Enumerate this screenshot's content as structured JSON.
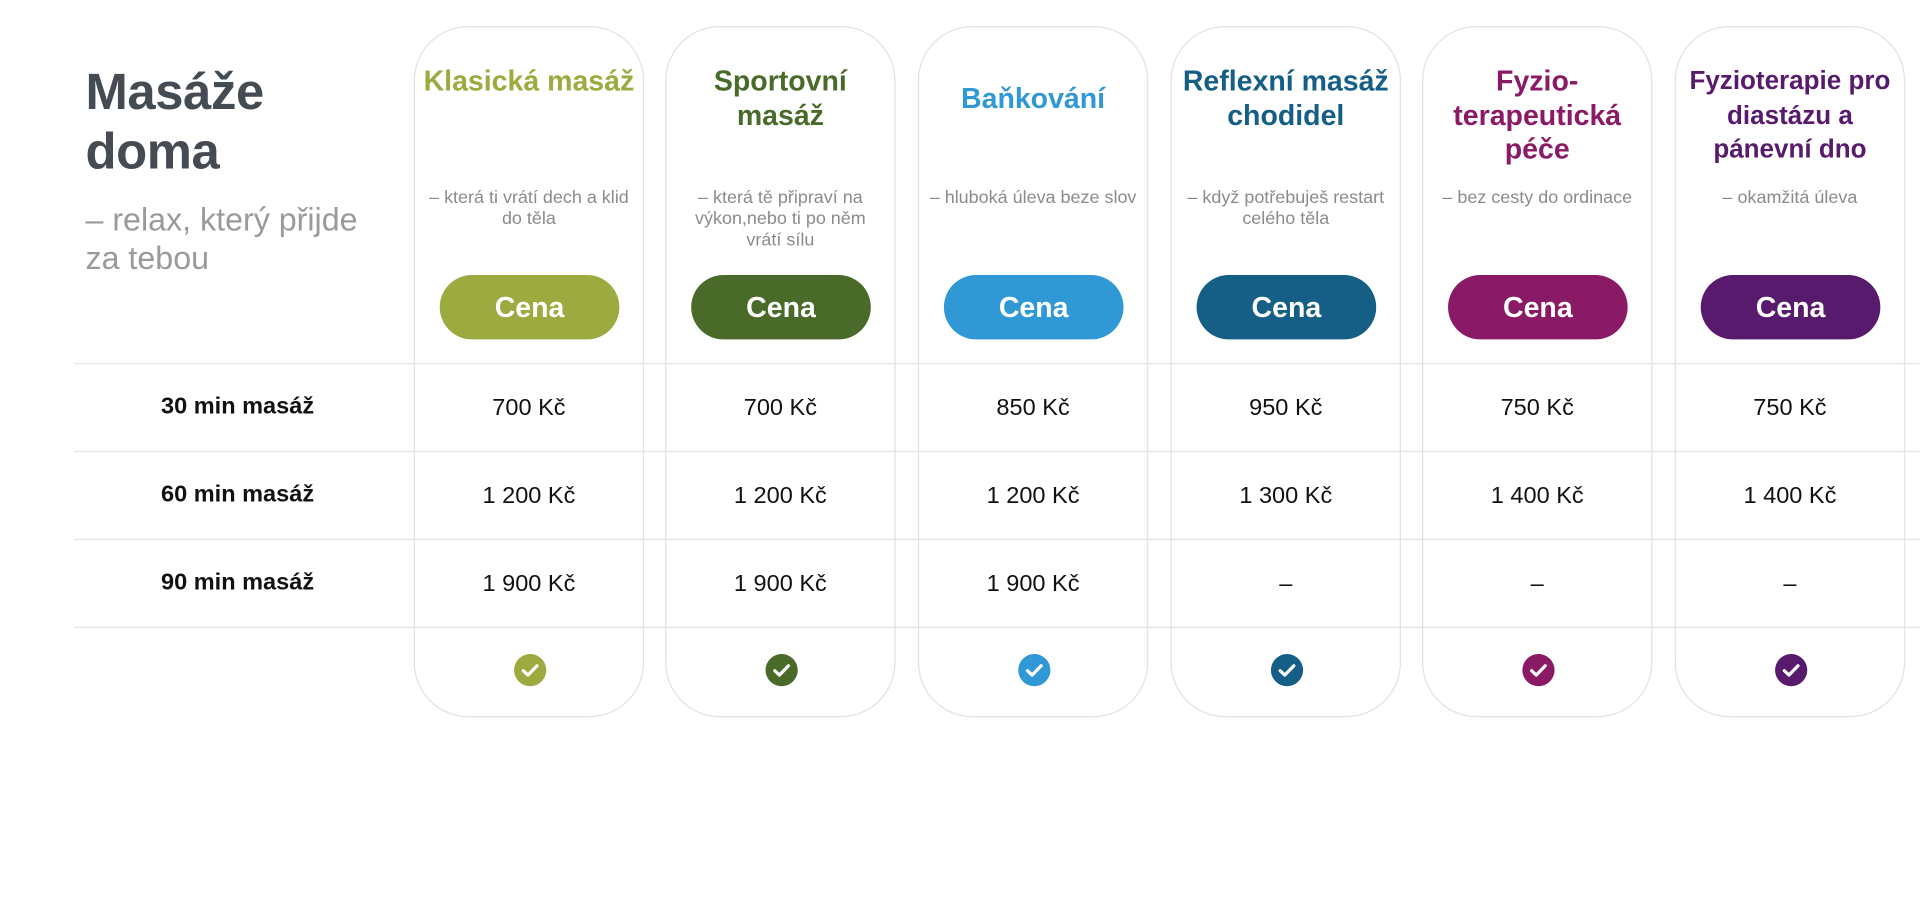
{
  "header": {
    "title": "Masáže doma",
    "subtitle": " – relax, který přijde za tebou"
  },
  "rows": {
    "r30": "30 min masáž",
    "r60": "60 min masáž",
    "r90": "90 min masáž"
  },
  "columns": [
    {
      "title": "Klasická masáž",
      "desc": "– která ti vrátí dech a klid do těla",
      "button_label": "Cena",
      "color": "#9caa3f",
      "prices": [
        "700 Kč",
        "1 200 Kč",
        "1 900 Kč"
      ],
      "check_icon": "check-circle-icon"
    },
    {
      "title": "Sportovní masáž",
      "desc": "– která tě připraví na výkon,nebo ti po něm vrátí sílu",
      "button_label": "Cena",
      "color": "#4a6a2a",
      "prices": [
        "700 Kč",
        "1 200 Kč",
        "1 900 Kč"
      ],
      "check_icon": "check-circle-icon"
    },
    {
      "title": "Baňkování",
      "desc": "– hluboká úleva beze slov",
      "button_label": "Cena",
      "color": "#3198d6",
      "prices": [
        "850 Kč",
        "1 200 Kč",
        "1 900 Kč"
      ],
      "check_icon": "check-circle-icon"
    },
    {
      "title": "Reflexní masáž chodidel",
      "desc": "– když potřebuješ restart celého těla",
      "button_label": "Cena",
      "color": "#155e86",
      "prices": [
        "950 Kč",
        "1 300 Kč",
        "–"
      ],
      "check_icon": "check-circle-icon"
    },
    {
      "title": "Fyzio-terapeutická péče",
      "desc": "– bez cesty do ordinace",
      "button_label": "Cena",
      "color": "#8b1a66",
      "prices": [
        "750 Kč",
        "1 400 Kč",
        "–"
      ],
      "check_icon": "check-circle-icon"
    },
    {
      "title": "Fyzioterapie pro diastázu a pánevní dno",
      "desc": "– okamžitá úleva",
      "button_label": "Cena",
      "color": "#581a6d",
      "prices": [
        "750 Kč",
        "1 400 Kč",
        "–"
      ],
      "check_icon": "check-circle-icon"
    }
  ]
}
